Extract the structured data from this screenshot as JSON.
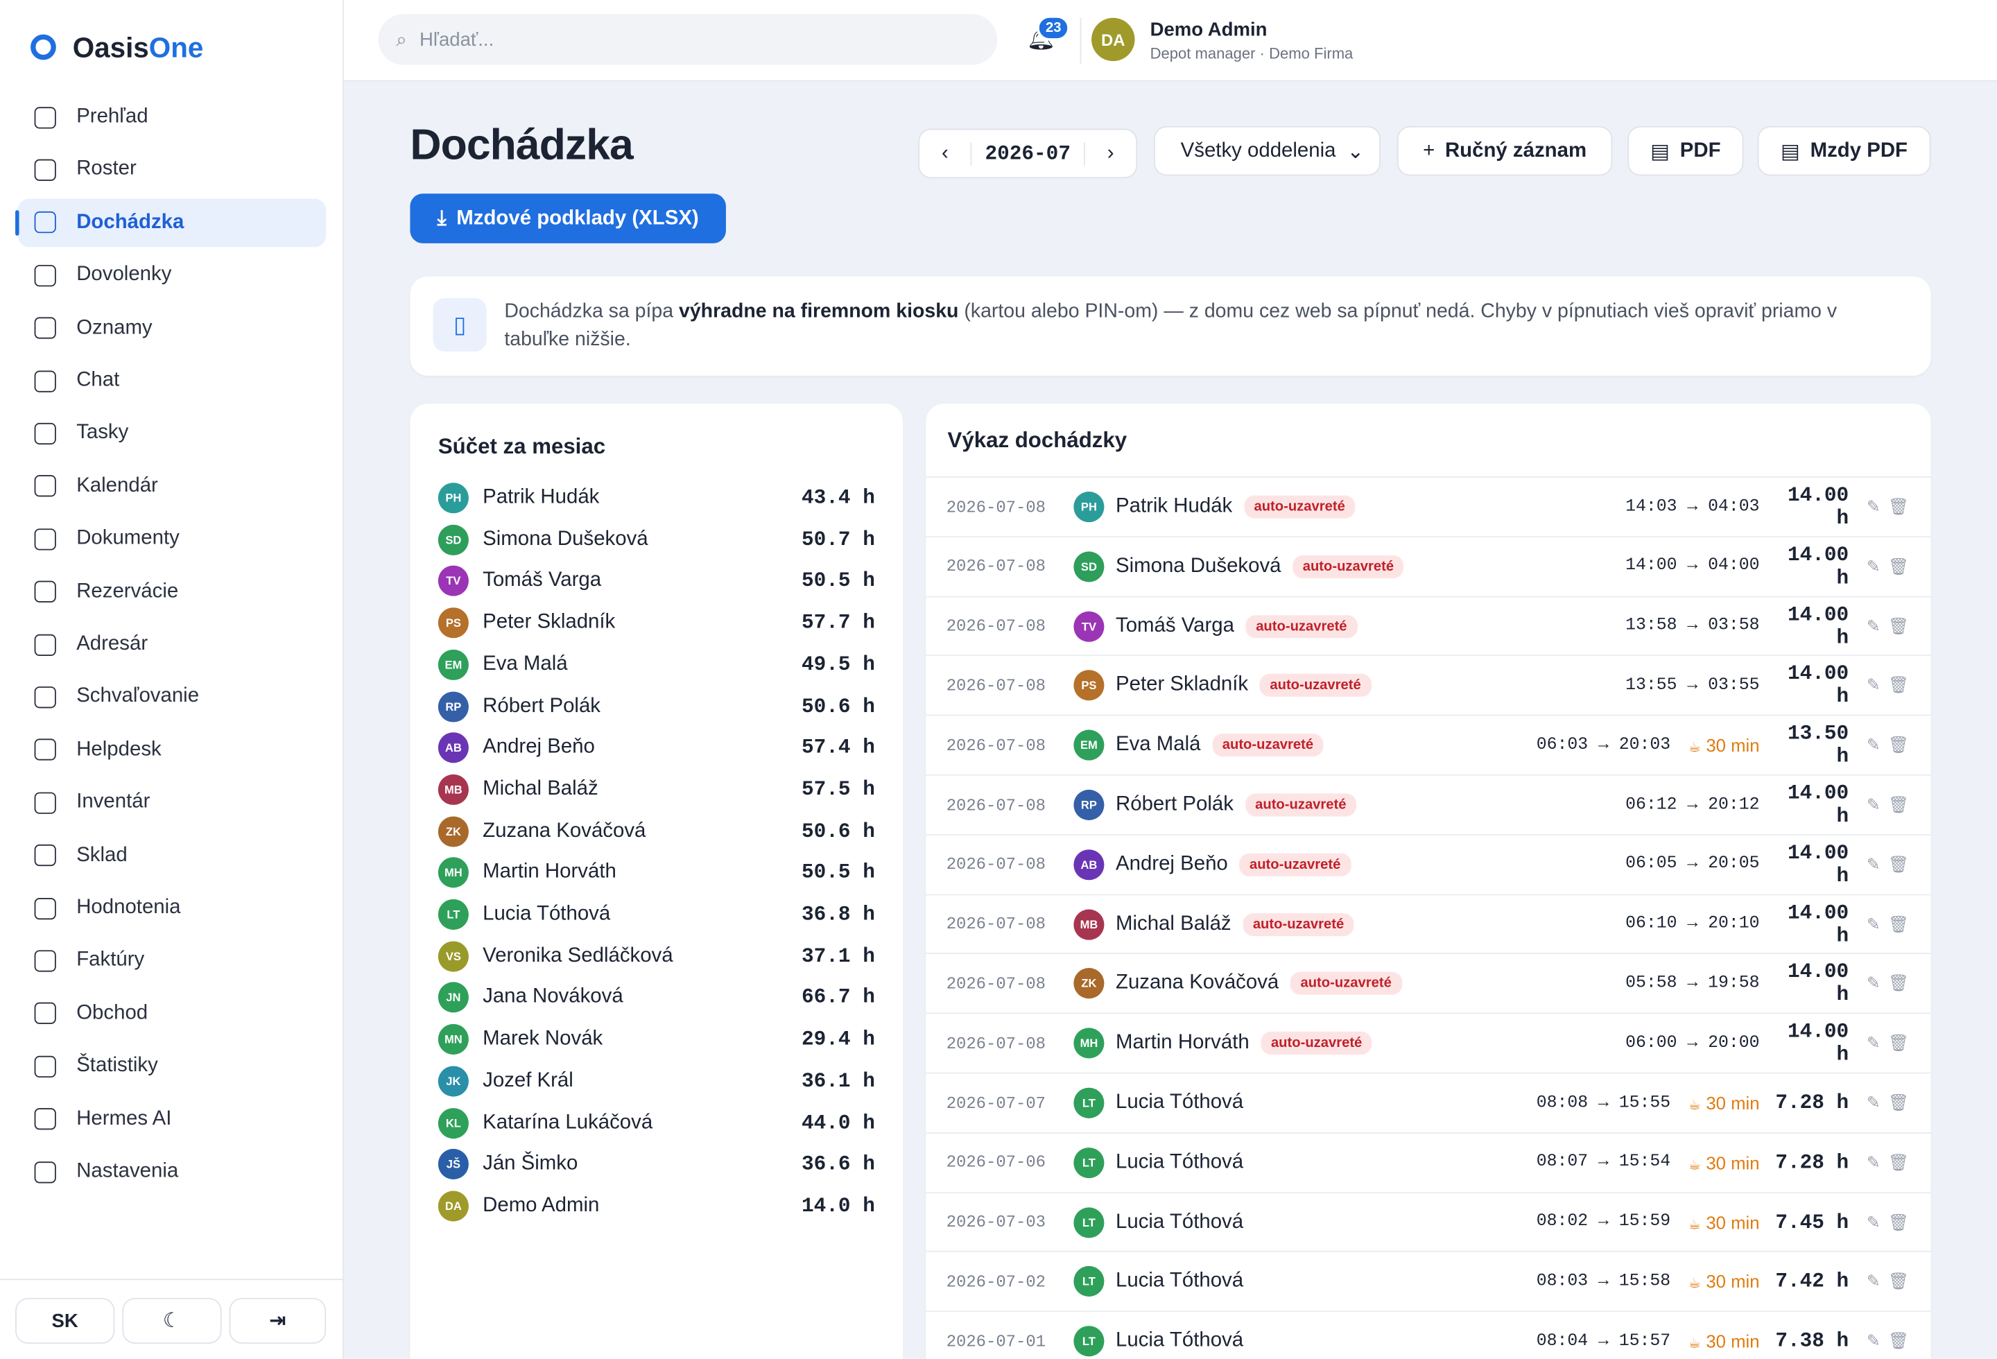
{
  "logo": {
    "a": "Oasis",
    "b": "One"
  },
  "nav": [
    "Prehľad",
    "Roster",
    "Dochádzka",
    "Dovolenky",
    "Oznamy",
    "Chat",
    "Tasky",
    "Kalendár",
    "Dokumenty",
    "Rezervácie",
    "Adresár",
    "Schvaľovanie",
    "Helpdesk",
    "Inventár",
    "Sklad",
    "Hodnotenia",
    "Faktúry",
    "Obchod",
    "Štatistiky",
    "Hermes AI",
    "Nastavenia"
  ],
  "footer": {
    "lang": "SK"
  },
  "topbar": {
    "search": "Hľadať...",
    "notifications": "23",
    "user": {
      "initials": "DA",
      "name": "Demo Admin",
      "role": "Depot manager · Demo Firma"
    }
  },
  "page": {
    "title": "Dochádzka",
    "month": "2026-07",
    "department": "Všetky oddelenia",
    "manual": "Ručný záznam",
    "pdf": "PDF",
    "payroll_pdf": "Mzdy PDF",
    "export": "Mzdové podklady (XLSX)"
  },
  "notice": {
    "before": "Dochádzka sa pípa ",
    "bold": "výhradne na firemnom kiosku",
    "after": " (kartou alebo PIN-om) — z domu cez web sa pípnuť nedá. Chyby v pípnutiach vieš opraviť priamo v tabuľke nižšie."
  },
  "summary": {
    "title": "Súčet za mesiac",
    "rows": [
      {
        "initials": "PH",
        "color": "#2a9d9a",
        "name": "Patrik Hudák",
        "hours": "43.4 h"
      },
      {
        "initials": "SD",
        "color": "#2e9e5b",
        "name": "Simona Dušeková",
        "hours": "50.7 h"
      },
      {
        "initials": "TV",
        "color": "#9b35b5",
        "name": "Tomáš Varga",
        "hours": "50.5 h"
      },
      {
        "initials": "PS",
        "color": "#b5702a",
        "name": "Peter Skladník",
        "hours": "57.7 h"
      },
      {
        "initials": "EM",
        "color": "#2ea05a",
        "name": "Eva Malá",
        "hours": "49.5 h"
      },
      {
        "initials": "RP",
        "color": "#3560a8",
        "name": "Róbert Polák",
        "hours": "50.6 h"
      },
      {
        "initials": "AB",
        "color": "#6a35b5",
        "name": "Andrej Beňo",
        "hours": "57.4 h"
      },
      {
        "initials": "MB",
        "color": "#a8354f",
        "name": "Michal Baláž",
        "hours": "57.5 h"
      },
      {
        "initials": "ZK",
        "color": "#a8692a",
        "name": "Zuzana Kováčová",
        "hours": "50.6 h"
      },
      {
        "initials": "MH",
        "color": "#2ea05a",
        "name": "Martin Horváth",
        "hours": "50.5 h"
      },
      {
        "initials": "LT",
        "color": "#2ea05a",
        "name": "Lucia Tóthová",
        "hours": "36.8 h"
      },
      {
        "initials": "VS",
        "color": "#9a9a2a",
        "name": "Veronika Sedláčková",
        "hours": "37.1 h"
      },
      {
        "initials": "JN",
        "color": "#2ea05a",
        "name": "Jana Nováková",
        "hours": "66.7 h"
      },
      {
        "initials": "MN",
        "color": "#2ea05a",
        "name": "Marek Novák",
        "hours": "29.4 h"
      },
      {
        "initials": "JK",
        "color": "#2a8fa8",
        "name": "Jozef Král",
        "hours": "36.1 h"
      },
      {
        "initials": "KL",
        "color": "#2ea05a",
        "name": "Katarína Lukáčová",
        "hours": "44.0 h"
      },
      {
        "initials": "JŠ",
        "color": "#2a5fa8",
        "name": "Ján Šimko",
        "hours": "36.6 h"
      },
      {
        "initials": "DA",
        "color": "#a09a2a",
        "name": "Demo Admin",
        "hours": "14.0 h"
      }
    ]
  },
  "report": {
    "title": "Výkaz dochádzky",
    "rows": [
      {
        "date": "2026-07-08",
        "initials": "PH",
        "color": "#2a9d9a",
        "name": "Patrik Hudák",
        "badge": "auto-uzavreté",
        "time": "14:03 → 04:03",
        "break": null,
        "hours": "14.00 h"
      },
      {
        "date": "2026-07-08",
        "initials": "SD",
        "color": "#2e9e5b",
        "name": "Simona Dušeková",
        "badge": "auto-uzavreté",
        "time": "14:00 → 04:00",
        "break": null,
        "hours": "14.00 h"
      },
      {
        "date": "2026-07-08",
        "initials": "TV",
        "color": "#9b35b5",
        "name": "Tomáš Varga",
        "badge": "auto-uzavreté",
        "time": "13:58 → 03:58",
        "break": null,
        "hours": "14.00 h"
      },
      {
        "date": "2026-07-08",
        "initials": "PS",
        "color": "#b5702a",
        "name": "Peter Skladník",
        "badge": "auto-uzavreté",
        "time": "13:55 → 03:55",
        "break": null,
        "hours": "14.00 h"
      },
      {
        "date": "2026-07-08",
        "initials": "EM",
        "color": "#2ea05a",
        "name": "Eva Malá",
        "badge": "auto-uzavreté",
        "time": "06:03 → 20:03",
        "break": "30 min",
        "hours": "13.50 h"
      },
      {
        "date": "2026-07-08",
        "initials": "RP",
        "color": "#3560a8",
        "name": "Róbert Polák",
        "badge": "auto-uzavreté",
        "time": "06:12 → 20:12",
        "break": null,
        "hours": "14.00 h"
      },
      {
        "date": "2026-07-08",
        "initials": "AB",
        "color": "#6a35b5",
        "name": "Andrej Beňo",
        "badge": "auto-uzavreté",
        "time": "06:05 → 20:05",
        "break": null,
        "hours": "14.00 h"
      },
      {
        "date": "2026-07-08",
        "initials": "MB",
        "color": "#a8354f",
        "name": "Michal Baláž",
        "badge": "auto-uzavreté",
        "time": "06:10 → 20:10",
        "break": null,
        "hours": "14.00 h"
      },
      {
        "date": "2026-07-08",
        "initials": "ZK",
        "color": "#a8692a",
        "name": "Zuzana Kováčová",
        "badge": "auto-uzavreté",
        "time": "05:58 → 19:58",
        "break": null,
        "hours": "14.00 h"
      },
      {
        "date": "2026-07-08",
        "initials": "MH",
        "color": "#2ea05a",
        "name": "Martin Horváth",
        "badge": "auto-uzavreté",
        "time": "06:00 → 20:00",
        "break": null,
        "hours": "14.00 h"
      },
      {
        "date": "2026-07-07",
        "initials": "LT",
        "color": "#2ea05a",
        "name": "Lucia Tóthová",
        "badge": null,
        "time": "08:08 → 15:55",
        "break": "30 min",
        "hours": "7.28 h"
      },
      {
        "date": "2026-07-06",
        "initials": "LT",
        "color": "#2ea05a",
        "name": "Lucia Tóthová",
        "badge": null,
        "time": "08:07 → 15:54",
        "break": "30 min",
        "hours": "7.28 h"
      },
      {
        "date": "2026-07-03",
        "initials": "LT",
        "color": "#2ea05a",
        "name": "Lucia Tóthová",
        "badge": null,
        "time": "08:02 → 15:59",
        "break": "30 min",
        "hours": "7.45 h"
      },
      {
        "date": "2026-07-02",
        "initials": "LT",
        "color": "#2ea05a",
        "name": "Lucia Tóthová",
        "badge": null,
        "time": "08:03 → 15:58",
        "break": "30 min",
        "hours": "7.42 h"
      },
      {
        "date": "2026-07-01",
        "initials": "LT",
        "color": "#2ea05a",
        "name": "Lucia Tóthová",
        "badge": null,
        "time": "08:04 → 15:57",
        "break": "30 min",
        "hours": "7.38 h"
      }
    ]
  }
}
